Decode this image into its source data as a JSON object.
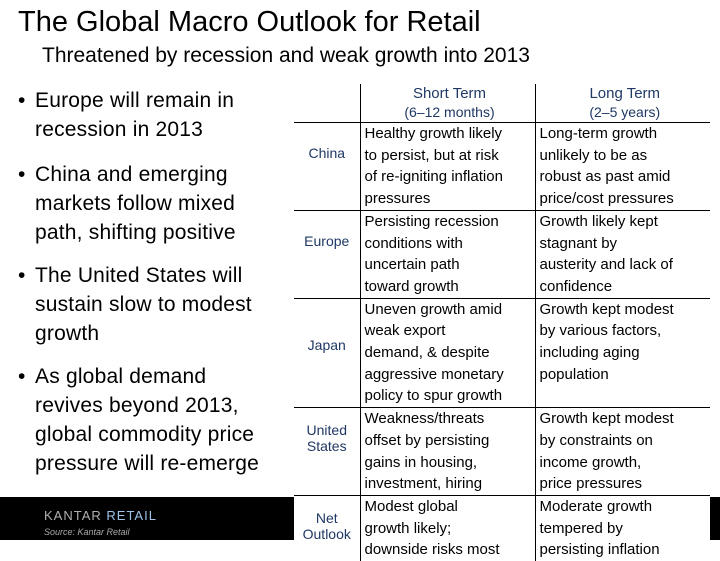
{
  "title": "The Global Macro Outlook for Retail",
  "subtitle": "Threatened by recession and weak growth into 2013",
  "bullets": [
    "Europe will remain in recession in 2013",
    "China and emerging markets follow mixed path, shifting positive",
    "The United States will sustain slow to modest growth",
    "As global demand revives beyond 2013, global commodity price pressure will re-emerge"
  ],
  "bullet_lines": [
    [
      "Europe will remain in",
      "recession in 2013"
    ],
    [
      "China and emerging",
      "markets follow mixed",
      "path, shifting positive"
    ],
    [
      "The United States will",
      "sustain slow to modest",
      "growth"
    ],
    [
      "As global demand",
      "revives beyond 2013,",
      "global commodity price",
      "pressure will re-emerge"
    ]
  ],
  "table": {
    "headers": {
      "short_term": "Short Term",
      "short_term_range": "(6–12 months)",
      "long_term": "Long Term",
      "long_term_range": "(2–5 years)"
    },
    "rows": [
      {
        "region": "China",
        "short": [
          "Healthy growth likely",
          "to persist, but at risk",
          "of re-igniting inflation",
          "pressures"
        ],
        "long": [
          "Long-term growth",
          "unlikely to be as",
          "robust as past amid",
          "price/cost pressures"
        ]
      },
      {
        "region": "Europe",
        "short": [
          "Persisting recession",
          "conditions with",
          "uncertain path",
          "toward growth"
        ],
        "long": [
          "Growth likely kept",
          "stagnant by",
          "austerity and lack of",
          "confidence"
        ]
      },
      {
        "region": "Japan",
        "short": [
          "Uneven growth amid",
          "weak export",
          "demand, & despite",
          "aggressive monetary",
          "policy to spur growth"
        ],
        "long": [
          "Growth kept modest",
          "by various factors,",
          "including aging",
          "population"
        ]
      },
      {
        "region": "United States",
        "short": [
          "Weakness/threats",
          "offset by persisting",
          "gains in housing,",
          "investment, hiring"
        ],
        "long": [
          "Growth kept modest",
          "by constraints on",
          "income growth,",
          "price pressures"
        ]
      },
      {
        "region": "Net Outlook",
        "short": [
          "Modest global",
          "growth likely;",
          "downside risks most"
        ],
        "long": [
          "Moderate growth",
          "tempered by",
          "persisting inflation"
        ]
      }
    ]
  },
  "footer": {
    "logo_left": "KANTAR",
    "logo_right": "RETAIL",
    "source": "Source: Kantar Retail"
  },
  "colors": {
    "region_text": "#1f3864",
    "logo_accent": "#9ec3e6",
    "footer_background": "#000000"
  }
}
